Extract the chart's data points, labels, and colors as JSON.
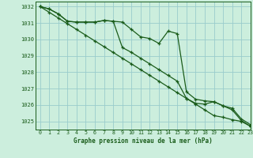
{
  "title": "Graphe pression niveau de la mer (hPa)",
  "background_color": "#cceedd",
  "grid_color": "#99cccc",
  "line_color": "#1a5c1a",
  "xlim": [
    -0.5,
    23
  ],
  "ylim": [
    1024.5,
    1032.3
  ],
  "yticks": [
    1025,
    1026,
    1027,
    1028,
    1029,
    1030,
    1031,
    1032
  ],
  "xticks": [
    0,
    1,
    2,
    3,
    4,
    5,
    6,
    7,
    8,
    9,
    10,
    11,
    12,
    13,
    14,
    15,
    16,
    17,
    18,
    19,
    20,
    21,
    22,
    23
  ],
  "series": [
    {
      "x": [
        0,
        1,
        2,
        3,
        4,
        5,
        6,
        7,
        8,
        9,
        10,
        11,
        12,
        13,
        14,
        15,
        16,
        17,
        18,
        19,
        20,
        21,
        22,
        23
      ],
      "y": [
        1032.0,
        1031.85,
        1031.55,
        1031.1,
        1031.05,
        1031.05,
        1031.05,
        1031.15,
        1031.1,
        1031.05,
        1030.6,
        1030.15,
        1030.05,
        1029.75,
        1030.5,
        1030.35,
        1026.8,
        1026.35,
        1026.25,
        1026.2,
        1025.95,
        1025.8,
        1025.15,
        1024.8
      ]
    },
    {
      "x": [
        0,
        1,
        2,
        3,
        4,
        5,
        6,
        7,
        8,
        9,
        10,
        11,
        12,
        13,
        14,
        15,
        16,
        17,
        18,
        19,
        20,
        21,
        22,
        23
      ],
      "y": [
        1032.0,
        1031.65,
        1031.3,
        1030.95,
        1030.6,
        1030.25,
        1029.9,
        1029.55,
        1029.2,
        1028.85,
        1028.5,
        1028.15,
        1027.8,
        1027.45,
        1027.1,
        1026.75,
        1026.4,
        1026.05,
        1025.7,
        1025.35,
        1025.25,
        1025.1,
        1025.0,
        1024.7
      ]
    },
    {
      "x": [
        0,
        1,
        2,
        3,
        4,
        5,
        6,
        7,
        8,
        9,
        10,
        11,
        12,
        13,
        14,
        15,
        16,
        17,
        18,
        19,
        20,
        21,
        22,
        23
      ],
      "y": [
        1032.0,
        1031.85,
        1031.55,
        1031.1,
        1031.05,
        1031.05,
        1031.05,
        1031.15,
        1031.1,
        1029.5,
        1029.2,
        1028.85,
        1028.5,
        1028.15,
        1027.8,
        1027.45,
        1026.4,
        1026.1,
        1026.05,
        1026.2,
        1025.95,
        1025.7,
        1025.05,
        1024.7
      ]
    }
  ]
}
